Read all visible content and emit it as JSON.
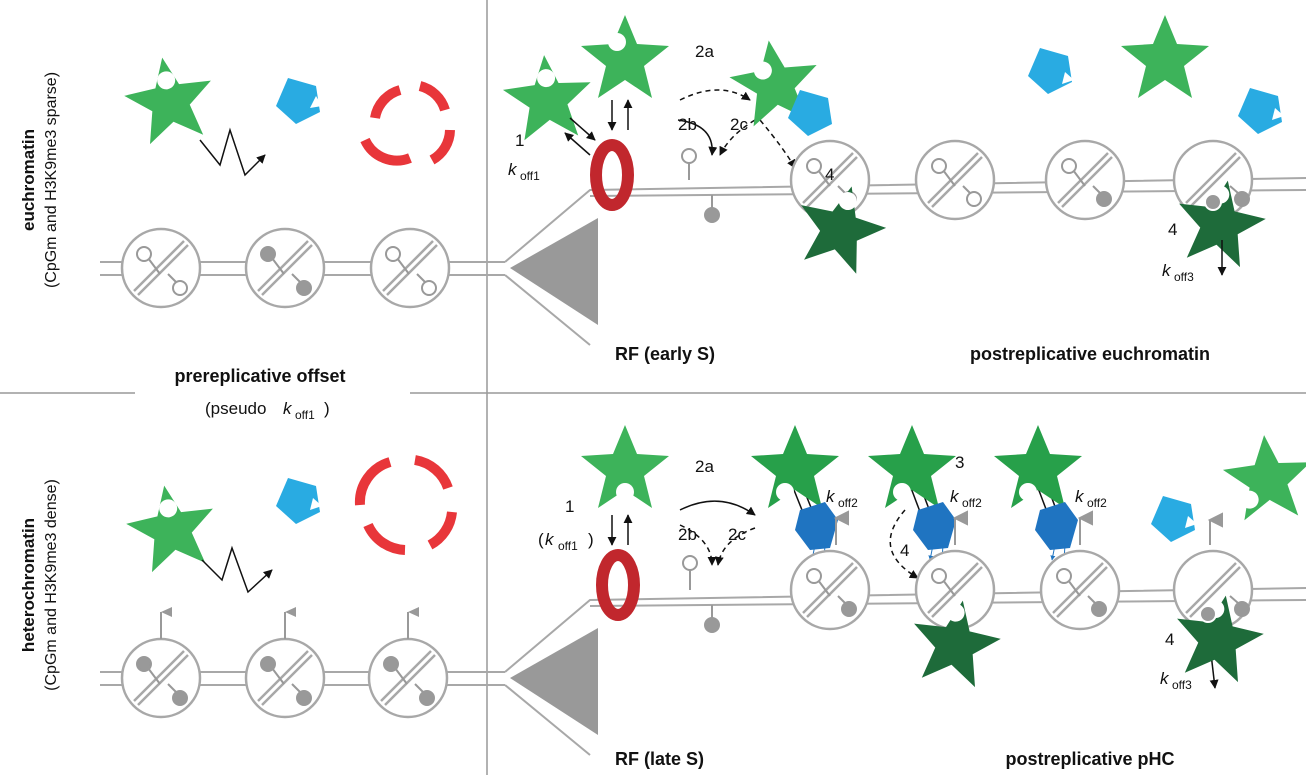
{
  "side_labels": {
    "top": {
      "line1": "euchromatin",
      "line2": "(CpGm and H3K9me3 sparse)"
    },
    "bottom": {
      "line1": "heterochromatin",
      "line2": "(CpGm and H3K9me3 dense)"
    }
  },
  "section_labels": {
    "prereplicative": "prereplicative offset",
    "pseudo_open": "(pseudo ",
    "pseudo_k": "k",
    "pseudo_sub": "off1",
    "pseudo_close": ")",
    "rf_early": "RF (early S)",
    "rf_late": "RF (late S)",
    "post_eu": "postreplicative euchromatin",
    "post_phc": "postreplicative pHC"
  },
  "step_labels": {
    "top": {
      "s1": "1",
      "s2a": "2a",
      "s2b": "2b",
      "s2c": "2c",
      "s4a": "4",
      "s4b": "4"
    },
    "bottom": {
      "s1": "1",
      "s2a": "2a",
      "s2b": "2b",
      "s2c": "2c",
      "s3": "3",
      "s4a": "4",
      "s4b": "4"
    }
  },
  "rate_labels": {
    "k": "k",
    "off1": "off1",
    "off2": "off2",
    "off3": "off3",
    "paren_open": "(",
    "paren_close": ")"
  },
  "colors": {
    "uhrf1_light": "#3db35a",
    "uhrf1_mid": "#27a04a",
    "uhrf1_dark": "#1e6b3a",
    "partner_light": "#29abe2",
    "partner_dark": "#1f74c1",
    "ring": "#c1272d",
    "fragments": "#e8363a",
    "chromatin": "#a8a8a8",
    "mark": "#999999"
  }
}
